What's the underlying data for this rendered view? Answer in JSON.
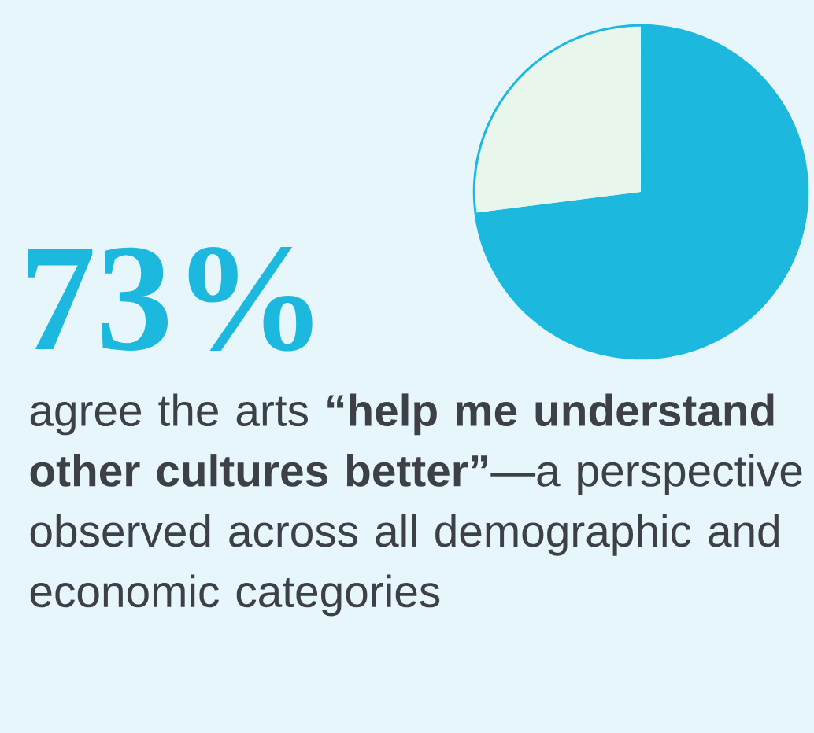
{
  "chart_data": {
    "type": "pie",
    "title": "73%",
    "subtitle": "agree the arts **“help me understand other cultures better”**—a perspective observed across all demographic and economic categories",
    "categories": [
      null,
      null
    ],
    "values": [
      73,
      27
    ],
    "colors": [
      "#1cb8de",
      "#e8f6ec"
    ]
  }
}
